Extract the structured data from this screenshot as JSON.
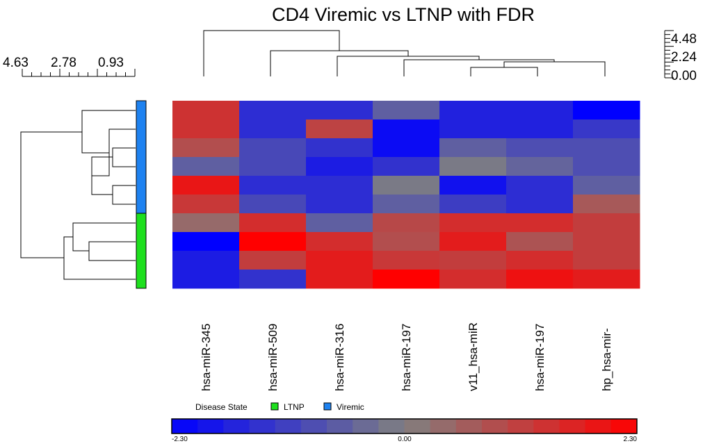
{
  "chart_data": {
    "type": "heatmap",
    "title": "CD4 Viremic vs LTNP with FDR",
    "columns": [
      "hsa-miR-345",
      "hsa-miR-509",
      "hsa-miR-316",
      "hsa-miR-197",
      "v11_hsa-miR",
      "hsa-miR-197",
      "hp_hsa-mir-"
    ],
    "rows": [
      {
        "group": "Viremic",
        "values": [
          1.4,
          -1.5,
          -1.5,
          -0.6,
          -1.7,
          -1.7,
          -2.3
        ]
      },
      {
        "group": "Viremic",
        "values": [
          1.4,
          -1.5,
          1.1,
          -2.1,
          -1.7,
          -1.7,
          -1.3
        ]
      },
      {
        "group": "Viremic",
        "values": [
          0.9,
          -1.0,
          -1.4,
          -2.1,
          -0.6,
          -0.9,
          -0.9
        ]
      },
      {
        "group": "Viremic",
        "values": [
          -0.6,
          -1.0,
          -1.8,
          -1.4,
          -0.1,
          -0.5,
          -0.9
        ]
      },
      {
        "group": "Viremic",
        "values": [
          1.9,
          -1.5,
          -1.5,
          -0.1,
          -2.0,
          -1.5,
          -0.6
        ]
      },
      {
        "group": "Viremic",
        "values": [
          1.3,
          -1.0,
          -1.5,
          -0.6,
          -1.2,
          -1.5,
          0.7
        ]
      },
      {
        "group": "LTNP",
        "values": [
          0.4,
          1.5,
          -0.6,
          1.0,
          1.5,
          1.5,
          1.2
        ]
      },
      {
        "group": "LTNP",
        "values": [
          -2.3,
          2.3,
          1.5,
          0.9,
          1.8,
          0.8,
          1.2
        ]
      },
      {
        "group": "LTNP",
        "values": [
          -1.8,
          1.2,
          1.8,
          1.3,
          1.2,
          1.5,
          1.2
        ]
      },
      {
        "group": "LTNP",
        "values": [
          -1.8,
          -1.4,
          1.8,
          2.3,
          1.5,
          2.0,
          1.8
        ]
      }
    ],
    "row_scale": {
      "tick_labels": [
        "4.63",
        "2.78",
        "0.93"
      ]
    },
    "col_scale": {
      "tick_labels": [
        "4.48",
        "2.24",
        "0.00"
      ]
    },
    "color_scale": {
      "min": -2.3,
      "max": 2.3,
      "mid": 0.0,
      "min_label": "-2.30",
      "mid_label": "0.00",
      "max_label": "2.30",
      "low_color": "#0000ff",
      "mid_color": "#808080",
      "high_color": "#ff0000",
      "steps": 18
    },
    "legend": {
      "title": "Disease State",
      "entries": [
        {
          "label": "LTNP",
          "color": "#1ee01e"
        },
        {
          "label": "Viremic",
          "color": "#1e82f0"
        }
      ]
    }
  }
}
